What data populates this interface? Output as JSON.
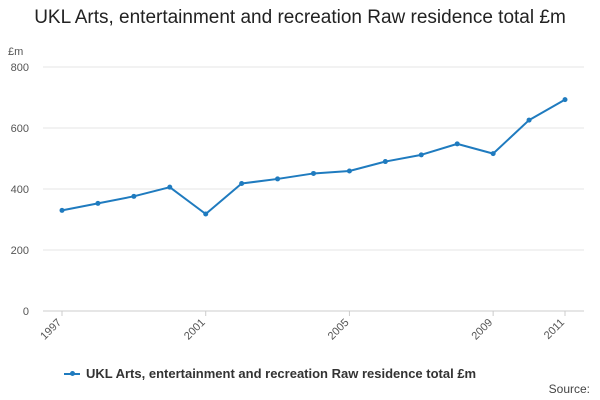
{
  "title": "UKL Arts, entertainment and recreation Raw residence total £m",
  "source_label": "Source:",
  "chart_data": {
    "type": "line",
    "title": "UKL Arts, entertainment and recreation Raw residence total £m",
    "xlabel": "",
    "ylabel": "£m",
    "x": [
      1997,
      1998,
      1999,
      2000,
      2001,
      2002,
      2003,
      2004,
      2005,
      2006,
      2007,
      2008,
      2009,
      2010,
      2011
    ],
    "x_tick_labels": [
      "1997",
      "2001",
      "2005",
      "2009",
      "2011"
    ],
    "y_ticks": [
      0,
      200,
      400,
      600,
      800
    ],
    "ylim": [
      0,
      800
    ],
    "grid": true,
    "legend_position": "bottom-left",
    "series": [
      {
        "name": "UKL Arts, entertainment and recreation Raw residence total £m",
        "color": "#1f7bbf",
        "values": [
          330,
          353,
          376,
          406,
          318,
          418,
          433,
          451,
          459,
          490,
          512,
          548,
          516,
          626,
          693
        ]
      }
    ]
  }
}
